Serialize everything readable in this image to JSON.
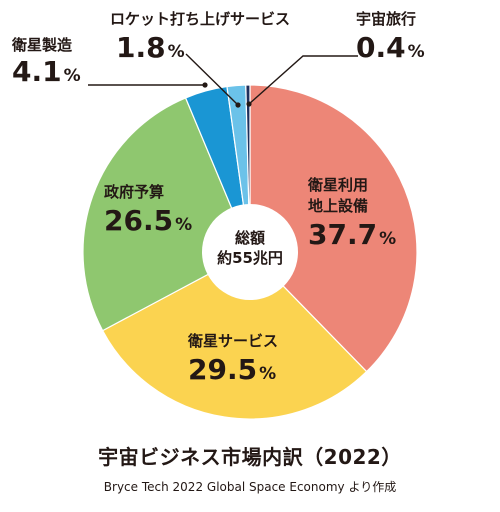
{
  "chart_data": {
    "type": "pie",
    "title": "宇宙ビジネス市場内訳（2022）",
    "source": "Bryce Tech 2022 Global Space Economy より作成",
    "center_label": [
      "総額",
      "約55兆円"
    ],
    "unit": "%",
    "slices": [
      {
        "label": "衛星利用地上設備",
        "label_lines": [
          "衛星利用",
          "地上設備"
        ],
        "value": 37.7,
        "value_text": "37.7",
        "color": "#ED8677"
      },
      {
        "label": "衛星サービス",
        "label_lines": [
          "衛星サービス"
        ],
        "value": 29.5,
        "value_text": "29.5",
        "color": "#FBD350"
      },
      {
        "label": "政府予算",
        "label_lines": [
          "政府予算"
        ],
        "value": 26.5,
        "value_text": "26.5",
        "color": "#8FC76F"
      },
      {
        "label": "衛星製造",
        "label_lines": [
          "衛星製造"
        ],
        "value": 4.1,
        "value_text": "4.1",
        "color": "#1A96D4"
      },
      {
        "label": "ロケット打ち上げサービス",
        "label_lines": [
          "ロケット打ち上げサービス"
        ],
        "value": 1.8,
        "value_text": "1.8",
        "color": "#6BC2E9"
      },
      {
        "label": "宇宙旅行",
        "label_lines": [
          "宇宙旅行"
        ],
        "value": 0.4,
        "value_text": "0.4",
        "color": "#1F2F5C"
      }
    ]
  }
}
